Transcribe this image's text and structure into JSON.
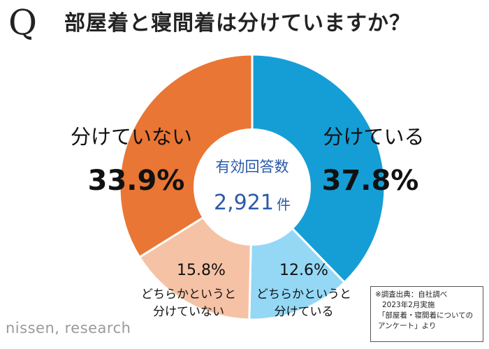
{
  "header": {
    "q_letter": "Q",
    "title": "部屋着と寝間着は分けていますか？"
  },
  "chart_data": {
    "type": "pie",
    "style": "donut",
    "title": "部屋着と寝間着は分けていますか？",
    "center": {
      "label": "有効回答数",
      "count": "2,921",
      "unit": "件"
    },
    "slices": [
      {
        "label": "分けている",
        "value": 37.8,
        "display": "37.8%",
        "color": "#159ed6"
      },
      {
        "label": "どちらかというと分けている",
        "label_lines": [
          "どちらかというと",
          "分けている"
        ],
        "value": 12.6,
        "display": "12.6%",
        "color": "#94d8f5"
      },
      {
        "label": "どちらかというと分けていない",
        "label_lines": [
          "どちらかというと",
          "分けていない"
        ],
        "value": 15.8,
        "display": "15.8%",
        "color": "#f5c2a6"
      },
      {
        "label": "分けていない",
        "value": 33.9,
        "display": "33.9%",
        "color": "#e97634"
      }
    ]
  },
  "footnote": {
    "lines": [
      "※調査出典：自社調べ",
      "2023年2月実施",
      "「部屋着・寝間着についての",
      "アンケート」より"
    ]
  },
  "logo": {
    "text": "nissen, research"
  }
}
